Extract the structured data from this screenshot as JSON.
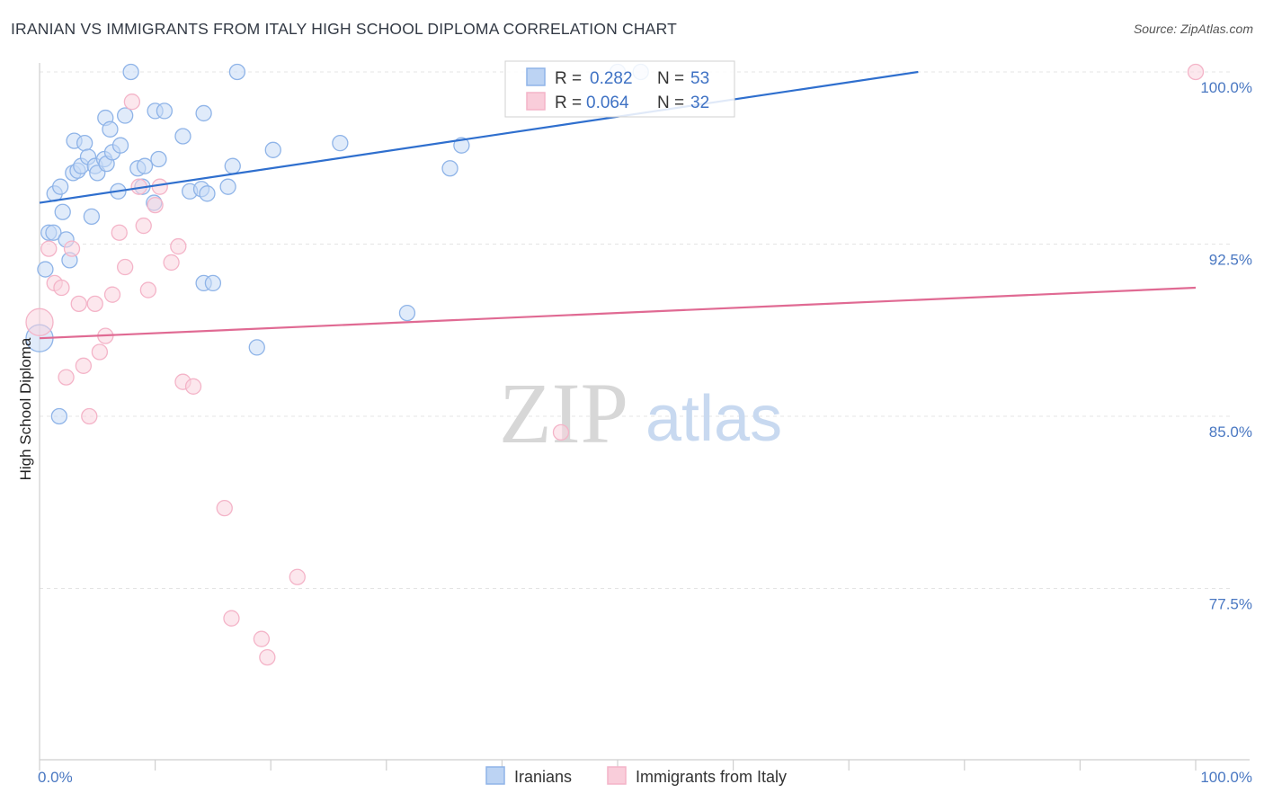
{
  "header": {
    "title": "IRANIAN VS IMMIGRANTS FROM ITALY HIGH SCHOOL DIPLOMA CORRELATION CHART",
    "source": "Source: ZipAtlas.com"
  },
  "watermark": {
    "zip": "ZIP",
    "atlas": "atlas"
  },
  "chart_data": {
    "type": "scatter",
    "title": "IRANIAN VS IMMIGRANTS FROM ITALY HIGH SCHOOL DIPLOMA CORRELATION CHART",
    "ylabel": "High School Diploma",
    "xlabel": "",
    "xlim": [
      0,
      100
    ],
    "ylim": [
      70.0,
      100.8
    ],
    "x_tick_labels": [
      {
        "value": 0,
        "label": "0.0%"
      },
      {
        "value": 100,
        "label": "100.0%"
      }
    ],
    "y_tick_labels": [
      {
        "value": 100.0,
        "label": "100.0%"
      },
      {
        "value": 92.5,
        "label": "92.5%"
      },
      {
        "value": 85.0,
        "label": "85.0%"
      },
      {
        "value": 77.5,
        "label": "77.5%"
      }
    ],
    "grid": true,
    "legend_position": "top-center",
    "series": [
      {
        "name": "Iranians",
        "color": "#8fb4e8",
        "line_color": "#2f6fce",
        "R": "0.282",
        "N": "53",
        "trend": {
          "x0": 0,
          "y0": 94.3,
          "x1": 76,
          "y1": 100.0,
          "x_dash_end": 76
        },
        "points": [
          [
            0,
            88.4
          ],
          [
            0.5,
            91.4
          ],
          [
            0.8,
            93.0
          ],
          [
            1.2,
            93.0
          ],
          [
            1.3,
            94.7
          ],
          [
            1.7,
            85.0
          ],
          [
            1.8,
            95.0
          ],
          [
            2.0,
            93.9
          ],
          [
            2.3,
            92.7
          ],
          [
            2.6,
            91.8
          ],
          [
            2.9,
            95.6
          ],
          [
            3.0,
            97.0
          ],
          [
            3.3,
            95.7
          ],
          [
            3.6,
            95.9
          ],
          [
            3.9,
            96.9
          ],
          [
            4.2,
            96.3
          ],
          [
            4.5,
            93.7
          ],
          [
            4.8,
            95.9
          ],
          [
            5.0,
            95.6
          ],
          [
            5.6,
            96.2
          ],
          [
            5.8,
            96.0
          ],
          [
            5.7,
            98.0
          ],
          [
            6.1,
            97.5
          ],
          [
            6.3,
            96.5
          ],
          [
            6.8,
            94.8
          ],
          [
            7.0,
            96.8
          ],
          [
            7.4,
            98.1
          ],
          [
            7.9,
            100.0
          ],
          [
            8.5,
            95.8
          ],
          [
            8.9,
            95.0
          ],
          [
            9.1,
            95.9
          ],
          [
            9.9,
            94.3
          ],
          [
            10.0,
            98.3
          ],
          [
            10.3,
            96.2
          ],
          [
            10.8,
            98.3
          ],
          [
            12.4,
            97.2
          ],
          [
            13.0,
            94.8
          ],
          [
            14.0,
            94.9
          ],
          [
            14.2,
            98.2
          ],
          [
            14.2,
            90.8
          ],
          [
            14.5,
            94.7
          ],
          [
            15.0,
            90.8
          ],
          [
            16.3,
            95.0
          ],
          [
            16.7,
            95.9
          ],
          [
            17.1,
            100.0
          ],
          [
            18.8,
            88.0
          ],
          [
            20.2,
            96.6
          ],
          [
            26.0,
            96.9
          ],
          [
            31.8,
            89.5
          ],
          [
            35.5,
            95.8
          ],
          [
            36.5,
            96.8
          ],
          [
            50.0,
            100.0
          ],
          [
            52.0,
            100.0
          ]
        ]
      },
      {
        "name": "Immigrants from Italy",
        "color": "#f4b4c8",
        "line_color": "#e06a93",
        "R": "0.064",
        "N": "32",
        "trend": {
          "x0": 0,
          "y0": 88.4,
          "x1": 100,
          "y1": 90.6
        },
        "points": [
          [
            0,
            89.1
          ],
          [
            0.8,
            92.3
          ],
          [
            1.3,
            90.8
          ],
          [
            1.9,
            90.6
          ],
          [
            2.3,
            86.7
          ],
          [
            2.8,
            92.3
          ],
          [
            3.4,
            89.9
          ],
          [
            3.8,
            87.2
          ],
          [
            4.3,
            85.0
          ],
          [
            4.8,
            89.9
          ],
          [
            5.2,
            87.8
          ],
          [
            5.7,
            88.5
          ],
          [
            6.3,
            90.3
          ],
          [
            6.9,
            93.0
          ],
          [
            7.4,
            91.5
          ],
          [
            8.0,
            98.7
          ],
          [
            8.6,
            95.0
          ],
          [
            9.0,
            93.3
          ],
          [
            9.4,
            90.5
          ],
          [
            10.0,
            94.2
          ],
          [
            10.4,
            95.0
          ],
          [
            11.4,
            91.7
          ],
          [
            12.0,
            92.4
          ],
          [
            12.4,
            86.5
          ],
          [
            13.3,
            86.3
          ],
          [
            16.0,
            81.0
          ],
          [
            16.6,
            76.2
          ],
          [
            19.2,
            75.3
          ],
          [
            19.7,
            74.5
          ],
          [
            22.3,
            78.0
          ],
          [
            45.1,
            84.3
          ],
          [
            100.0,
            100.0
          ]
        ]
      }
    ]
  },
  "legend": {
    "r_label": "R =",
    "n_label": "N ="
  }
}
